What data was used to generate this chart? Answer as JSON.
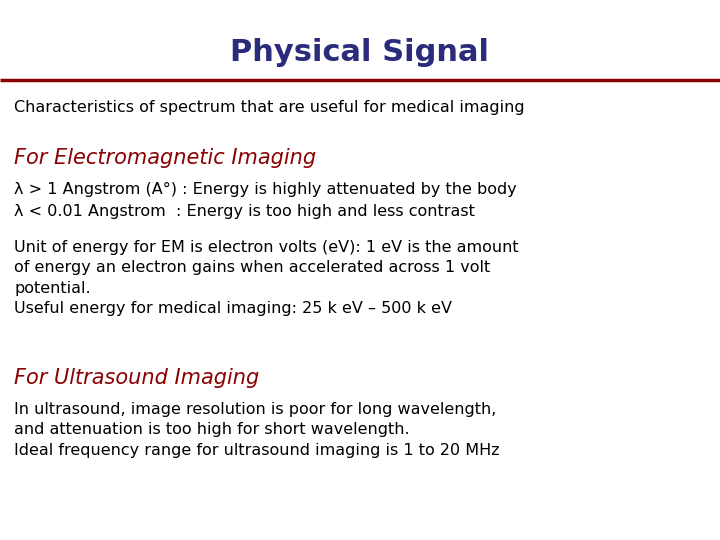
{
  "title": "Physical Signal",
  "title_color": "#2B2B7B",
  "title_fontsize": 22,
  "subtitle": "Characteristics of spectrum that are useful for medical imaging",
  "subtitle_color": "#000000",
  "subtitle_fontsize": 11.5,
  "section1_heading": "For Electromagnetic Imaging",
  "section1_color": "#8B0000",
  "section1_fontsize": 15,
  "section1_line1": "λ > 1 Angstrom (A°) : Energy is highly attenuated by the body",
  "section1_line2": "λ < 0.01 Angstrom  : Energy is too high and less contrast",
  "section1_body": "Unit of energy for EM is electron volts (eV): 1 eV is the amount\nof energy an electron gains when accelerated across 1 volt\npotential.\nUseful energy for medical imaging: 25 k eV – 500 k eV",
  "section2_heading": "For Ultrasound Imaging",
  "section2_color": "#8B0000",
  "section2_fontsize": 15,
  "section2_body": "In ultrasound, image resolution is poor for long wavelength,\nand attenuation is too high for short wavelength.\nIdeal frequency range for ultrasound imaging is 1 to 20 MHz",
  "body_color": "#000000",
  "body_fontsize": 11.5,
  "bg_color": "#FFFFFF",
  "line_color": "#8B0000",
  "line_width": 2.5,
  "fig_width": 7.2,
  "fig_height": 5.4,
  "dpi": 100
}
